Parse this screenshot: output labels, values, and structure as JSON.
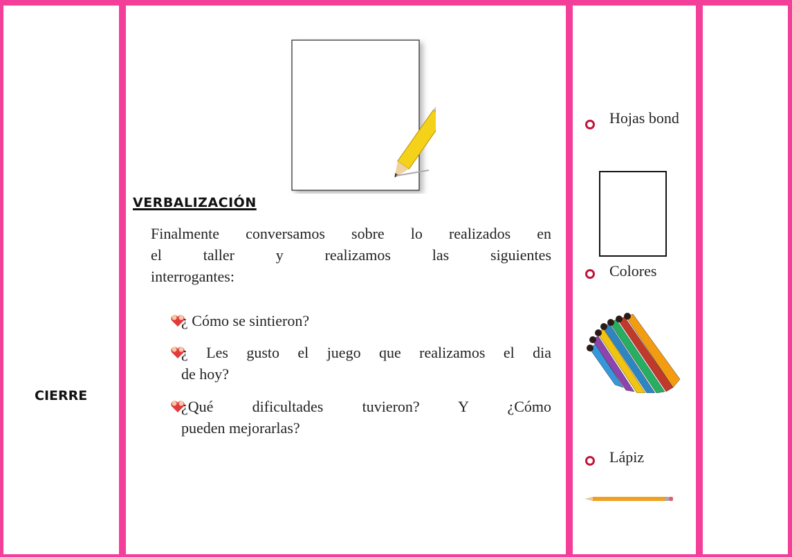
{
  "phase": "CIERRE",
  "activity": {
    "heading": "VERBALIZACIÓN",
    "paragraph": [
      "Finalmente conversamos sobre lo realizados en",
      "el taller y realizamos las siguientes",
      "interrogantes:"
    ],
    "questions": [
      [
        "¿ Cómo se sintieron?"
      ],
      [
        "¿ Les gusto el juego que realizamos el dia",
        "de hoy?"
      ],
      [
        "¿Qué dificultades tuvieron? Y ¿Cómo",
        "pueden mejorarlas?"
      ]
    ]
  },
  "materials": [
    "Hojas bond",
    "Colores",
    "Lápiz"
  ]
}
